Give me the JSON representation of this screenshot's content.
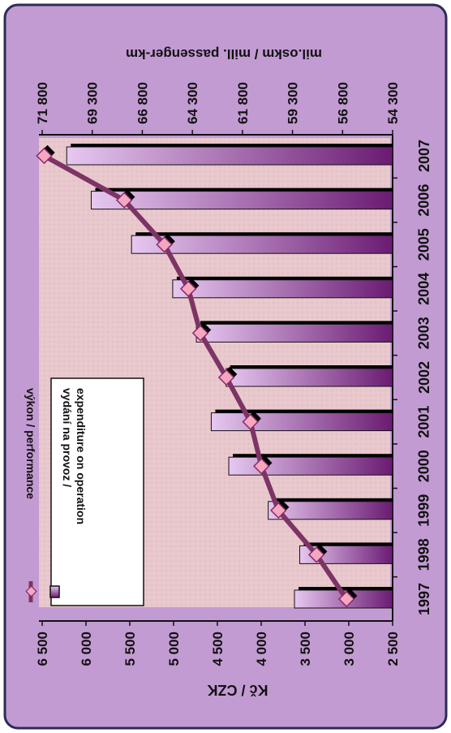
{
  "chart_data": {
    "type": "bar",
    "orientation": "rotated-90-clockwise",
    "categories": [
      "1997",
      "1998",
      "1999",
      "2000",
      "2001",
      "2002",
      "2003",
      "2004",
      "2005",
      "2006",
      "2007"
    ],
    "series": [
      {
        "name": "vydání na provoz / expenditure on operation",
        "type": "bar",
        "axis": "left",
        "values": [
          3620,
          3560,
          3920,
          4370,
          4570,
          4400,
          4740,
          5010,
          5480,
          5940,
          6220
        ]
      },
      {
        "name": "výkon / performance",
        "type": "line",
        "axis": "right",
        "values": [
          56600,
          58100,
          60000,
          60850,
          61400,
          62600,
          63900,
          64500,
          65700,
          67700,
          71700
        ]
      }
    ],
    "ylabel_left": "Kč / CZK",
    "ylabel_right": "mil.oskm / mill. passenger-km",
    "yticks_left": [
      "2 500",
      "3 000",
      "3 500",
      "4 000",
      "4 500",
      "5 000",
      "5 500",
      "6 000",
      "6 500"
    ],
    "yticks_right": [
      "54 300",
      "56 800",
      "59 300",
      "61 800",
      "64 300",
      "66 800",
      "69 300",
      "71 800"
    ],
    "ylim_left": [
      2500,
      6500
    ],
    "ylim_right": [
      54300,
      71800
    ],
    "legend_placement": "bottom-left",
    "grid": false,
    "colors": {
      "frame": "#c39bd3",
      "frame_border": "#2b2b5a",
      "plot_bg": "#e8c8cc",
      "bar_light": "#e6c8f0",
      "bar_dark": "#6a1b72",
      "bar_shadow": "#000000",
      "line": "#7d3465",
      "marker": "#f4a7bf",
      "marker_edge": "#8a2a6a",
      "text": "#111111"
    }
  }
}
